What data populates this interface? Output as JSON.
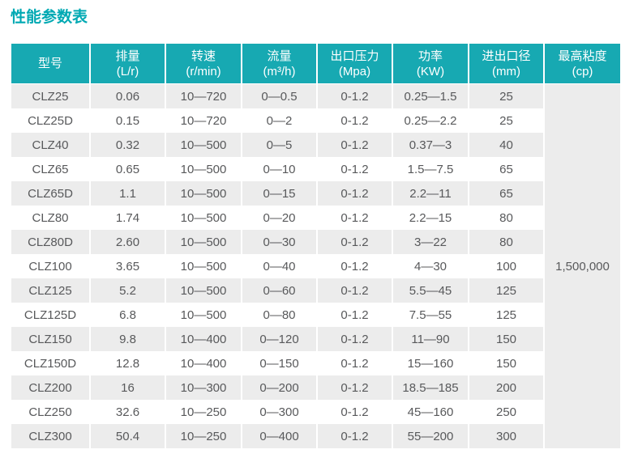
{
  "title": "性能参数表",
  "table": {
    "columns": [
      {
        "name": "型号",
        "unit": ""
      },
      {
        "name": "排量",
        "unit": "(L/r)"
      },
      {
        "name": "转速",
        "unit": "(r/min)"
      },
      {
        "name": "流量",
        "unit": "(m³/h)"
      },
      {
        "name": "出口压力",
        "unit": "(Mpa)"
      },
      {
        "name": "功率",
        "unit": "(KW)"
      },
      {
        "name": "进出口径",
        "unit": "(mm)"
      },
      {
        "name": "最高粘度",
        "unit": "(cp)"
      }
    ],
    "rows": [
      {
        "model": "CLZ25",
        "displacement": "0.06",
        "speed": "10—720",
        "flow": "0—0.5",
        "pressure": "0-1.2",
        "power": "0.25—1.5",
        "diameter": "25"
      },
      {
        "model": "CLZ25D",
        "displacement": "0.15",
        "speed": "10—720",
        "flow": "0—2",
        "pressure": "0-1.2",
        "power": "0.25—2.2",
        "diameter": "25"
      },
      {
        "model": "CLZ40",
        "displacement": "0.32",
        "speed": "10—500",
        "flow": "0—5",
        "pressure": "0-1.2",
        "power": "0.37—3",
        "diameter": "40"
      },
      {
        "model": "CLZ65",
        "displacement": "0.65",
        "speed": "10—500",
        "flow": "0—10",
        "pressure": "0-1.2",
        "power": "1.5—7.5",
        "diameter": "65"
      },
      {
        "model": "CLZ65D",
        "displacement": "1.1",
        "speed": "10—500",
        "flow": "0—15",
        "pressure": "0-1.2",
        "power": "2.2—11",
        "diameter": "65"
      },
      {
        "model": "CLZ80",
        "displacement": "1.74",
        "speed": "10—500",
        "flow": "0—20",
        "pressure": "0-1.2",
        "power": "2.2—15",
        "diameter": "80"
      },
      {
        "model": "CLZ80D",
        "displacement": "2.60",
        "speed": "10—500",
        "flow": "0—30",
        "pressure": "0-1.2",
        "power": "3—22",
        "diameter": "80"
      },
      {
        "model": "CLZ100",
        "displacement": "3.65",
        "speed": "10—500",
        "flow": "0—40",
        "pressure": "0-1.2",
        "power": "4—30",
        "diameter": "100"
      },
      {
        "model": "CLZ125",
        "displacement": "5.2",
        "speed": "10—500",
        "flow": "0—60",
        "pressure": "0-1.2",
        "power": "5.5—45",
        "diameter": "125"
      },
      {
        "model": "CLZ125D",
        "displacement": "6.8",
        "speed": "10—500",
        "flow": "0—80",
        "pressure": "0-1.2",
        "power": "7.5—55",
        "diameter": "125"
      },
      {
        "model": "CLZ150",
        "displacement": "9.8",
        "speed": "10—400",
        "flow": "0—120",
        "pressure": "0-1.2",
        "power": "11—90",
        "diameter": "150"
      },
      {
        "model": "CLZ150D",
        "displacement": "12.8",
        "speed": "10—400",
        "flow": "0—150",
        "pressure": "0-1.2",
        "power": "15—160",
        "diameter": "150"
      },
      {
        "model": "CLZ200",
        "displacement": "16",
        "speed": "10—300",
        "flow": "0—200",
        "pressure": "0-1.2",
        "power": "18.5—185",
        "diameter": "200"
      },
      {
        "model": "CLZ250",
        "displacement": "32.6",
        "speed": "10—250",
        "flow": "0—300",
        "pressure": "0-1.2",
        "power": "45—160",
        "diameter": "250"
      },
      {
        "model": "CLZ300",
        "displacement": "50.4",
        "speed": "10—250",
        "flow": "0—400",
        "pressure": "0-1.2",
        "power": "55—200",
        "diameter": "300"
      }
    ],
    "max_viscosity": "1,500,000"
  },
  "colors": {
    "accent": "#00a9b3",
    "header_bg": "#17a9b2",
    "row_alt_bg": "#ececec",
    "text": "#58595b",
    "header_text": "#ffffff"
  }
}
